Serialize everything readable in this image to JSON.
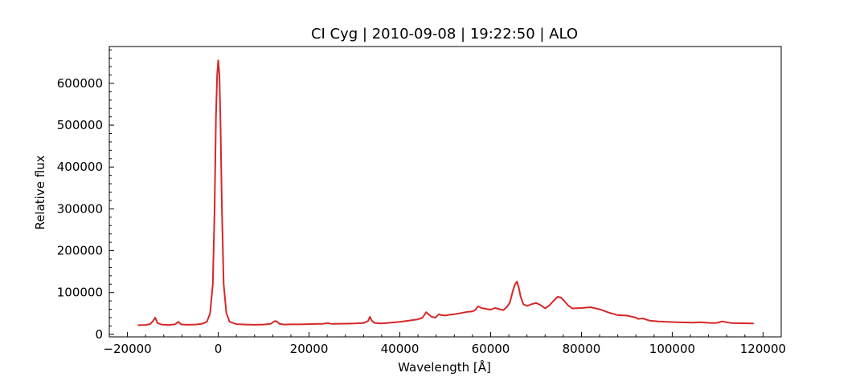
{
  "chart_data": {
    "type": "line",
    "title": "CI Cyg | 2010-09-08 | 19:22:50 | ALO",
    "xlabel": "Wavelength [Å]",
    "ylabel": "Relative flux",
    "xlim": [
      -24000,
      124000
    ],
    "ylim": [
      -6000,
      688000
    ],
    "x_ticks": [
      -20000,
      0,
      20000,
      40000,
      60000,
      80000,
      100000,
      120000
    ],
    "x_tick_labels": [
      "−20000",
      "0",
      "20000",
      "40000",
      "60000",
      "80000",
      "100000",
      "120000"
    ],
    "y_ticks": [
      0,
      100000,
      200000,
      300000,
      400000,
      500000,
      600000
    ],
    "y_tick_labels": [
      "0",
      "100000",
      "200000",
      "300000",
      "400000",
      "500000",
      "600000"
    ],
    "grid": false,
    "series": [
      {
        "color": "#d62728",
        "x": [
          -17600,
          -16000,
          -15000,
          -14300,
          -13900,
          -13400,
          -12500,
          -11000,
          -9500,
          -8800,
          -8200,
          -7000,
          -5000,
          -3500,
          -2500,
          -1800,
          -1200,
          -800,
          -500,
          -250,
          0,
          250,
          500,
          800,
          1200,
          1800,
          2500,
          4000,
          6000,
          8000,
          10000,
          11500,
          12500,
          13000,
          13500,
          14500,
          16000,
          18000,
          20000,
          22000,
          23000,
          24000,
          25000,
          27000,
          30000,
          32000,
          33000,
          33400,
          33800,
          34500,
          36000,
          38000,
          40000,
          42000,
          44000,
          45000,
          45800,
          46300,
          47000,
          47800,
          48600,
          49200,
          50000,
          51000,
          52000,
          53000,
          54000,
          55000,
          56000,
          56600,
          57200,
          58000,
          59000,
          60000,
          61000,
          62000,
          62800,
          63500,
          64200,
          64800,
          65300,
          65800,
          66200,
          66600,
          67200,
          68000,
          69000,
          70000,
          71000,
          72000,
          73000,
          74000,
          74800,
          75500,
          76200,
          77000,
          78000,
          80000,
          82000,
          84000,
          86000,
          88000,
          90000,
          92000,
          92500,
          93500,
          95000,
          97000,
          99000,
          101000,
          103000,
          104500,
          106000,
          108000,
          109500,
          110200,
          111000,
          113000,
          115000,
          117800
        ],
        "y": [
          22000,
          22500,
          24500,
          33000,
          40000,
          27000,
          23500,
          22500,
          24000,
          30000,
          24000,
          23000,
          23500,
          25500,
          30000,
          50000,
          120000,
          300000,
          520000,
          620000,
          655000,
          620000,
          500000,
          300000,
          120000,
          50000,
          30000,
          24500,
          23500,
          23000,
          23500,
          25000,
          32000,
          30000,
          25000,
          23500,
          24000,
          24000,
          24500,
          25000,
          25000,
          27000,
          25000,
          25500,
          26000,
          27000,
          32000,
          42000,
          33000,
          27000,
          26000,
          28000,
          30000,
          33000,
          36000,
          40000,
          53000,
          48000,
          42000,
          40000,
          48000,
          46000,
          45000,
          47000,
          48000,
          50000,
          52000,
          54000,
          55000,
          58000,
          67000,
          63000,
          61000,
          59000,
          63000,
          60000,
          58000,
          65000,
          75000,
          100000,
          118000,
          126000,
          112000,
          90000,
          72000,
          68000,
          72000,
          75000,
          70000,
          62000,
          70000,
          82000,
          90000,
          88000,
          80000,
          70000,
          62000,
          63000,
          65000,
          60000,
          52000,
          46000,
          45000,
          40000,
          37000,
          38000,
          33000,
          31000,
          30000,
          29000,
          28500,
          28000,
          29000,
          27500,
          27000,
          28500,
          31000,
          27000,
          26500,
          26000
        ]
      }
    ]
  }
}
